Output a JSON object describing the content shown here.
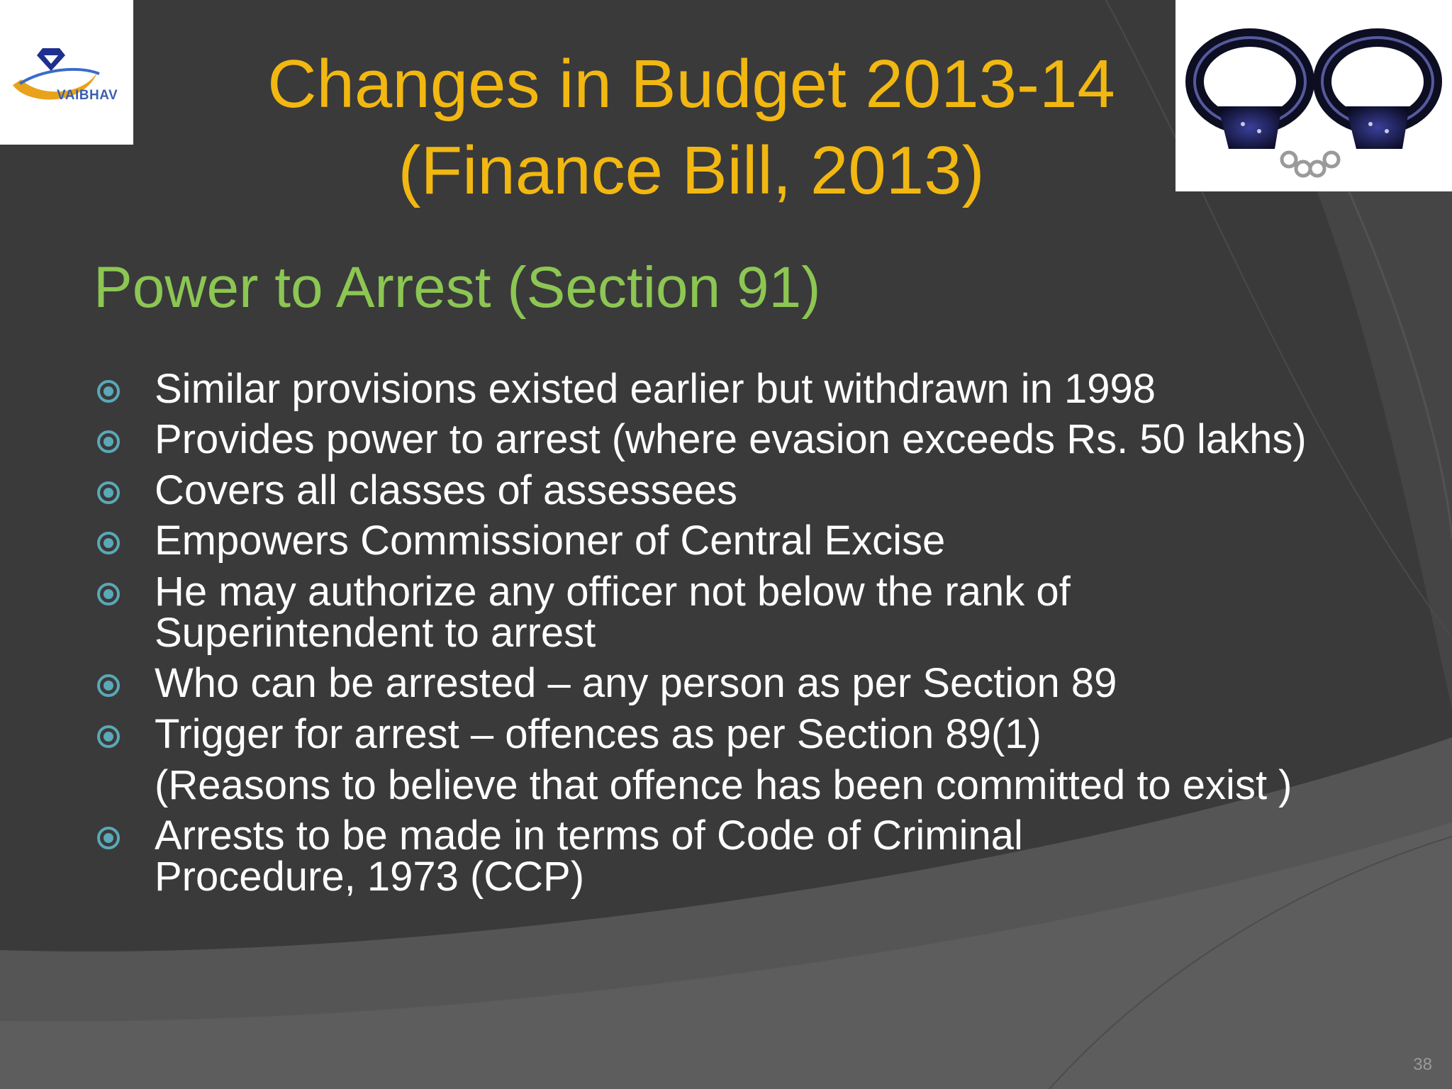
{
  "logo": {
    "text": "VAIBHAV",
    "accent_color": "#1f2f8f",
    "swoosh_color": "#e8a21b"
  },
  "title": {
    "line1": "Changes in Budget 2013-14",
    "line2": "(Finance Bill, 2013)",
    "color": "#f2b811"
  },
  "subtitle": {
    "text": "Power to Arrest (Section 91)",
    "color": "#8cc653"
  },
  "bullets": [
    {
      "text": "Similar provisions existed earlier  but withdrawn in 1998"
    },
    {
      "text": "Provides power to arrest (where evasion exceeds Rs. 50 lakhs)"
    },
    {
      "text": "Covers all classes of assessees"
    },
    {
      "text": "Empowers Commissioner of Central Excise"
    },
    {
      "line1": "He may authorize any officer not below the rank of",
      "line2": "Superintendent to arrest"
    },
    {
      "text": "Who can be arrested – any person as per Section 89"
    },
    {
      "text": "Trigger for arrest – offences  as per Section 89(1)"
    },
    {
      "text": " (Reasons to believe that offence has been committed to exist )"
    },
    {
      "line1": "Arrests to be made in terms of Code of Criminal",
      "line2": "Procedure,  1973 (CCP)"
    }
  ],
  "image": {
    "icon": "handcuffs-icon"
  },
  "bullet_icon": "circle-bullet-icon",
  "page_number": "38"
}
